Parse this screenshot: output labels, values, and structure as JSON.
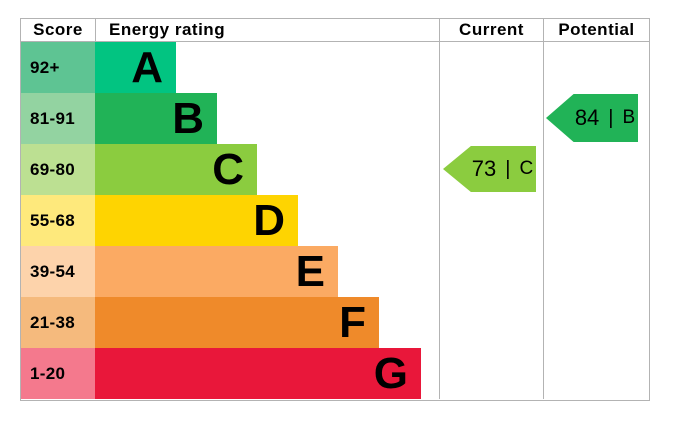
{
  "header": {
    "score": "Score",
    "energy_rating": "Energy rating",
    "current": "Current",
    "potential": "Potential"
  },
  "bands": [
    {
      "letter": "A",
      "score_range": "92+",
      "color": "#02c481",
      "tint_color": "#5ec493"
    },
    {
      "letter": "B",
      "score_range": "81-91",
      "color": "#21b357",
      "tint_color": "#93d3a1"
    },
    {
      "letter": "C",
      "score_range": "69-80",
      "color": "#8bcc3f",
      "tint_color": "#bce092"
    },
    {
      "letter": "D",
      "score_range": "55-68",
      "color": "#fed401",
      "tint_color": "#fee97c"
    },
    {
      "letter": "E",
      "score_range": "39-54",
      "color": "#fbaa63",
      "tint_color": "#fdd3ab"
    },
    {
      "letter": "F",
      "score_range": "21-38",
      "color": "#ef8a2a",
      "tint_color": "#f5ba7d"
    },
    {
      "letter": "G",
      "score_range": "1-20",
      "color": "#e9173a",
      "tint_color": "#f4798d"
    }
  ],
  "current_arrow": {
    "score": "73",
    "separator": "|",
    "rating": "C",
    "color": "#8bcc3f"
  },
  "potential_arrow": {
    "score": "84",
    "separator": "|",
    "rating": "B",
    "color": "#21b357"
  },
  "chart_data": {
    "type": "bar",
    "title": "Energy performance certificate (EPC) energy efficiency rating chart",
    "columns": [
      "Score",
      "Energy rating",
      "Current",
      "Potential"
    ],
    "categories": [
      "A",
      "B",
      "C",
      "D",
      "E",
      "F",
      "G"
    ],
    "score_ranges": [
      "92+",
      "81-91",
      "69-80",
      "55-68",
      "39-54",
      "21-38",
      "1-20"
    ],
    "band_colors": [
      "#02c481",
      "#21b357",
      "#8bcc3f",
      "#fed401",
      "#fbaa63",
      "#ef8a2a",
      "#e9173a"
    ],
    "bar_lengths_relative": [
      1,
      1.5,
      2,
      2.5,
      3,
      3.5,
      4
    ],
    "current": {
      "score": 73,
      "rating": "C"
    },
    "potential": {
      "score": 84,
      "rating": "B"
    },
    "grid": false,
    "legend_position": "none"
  }
}
